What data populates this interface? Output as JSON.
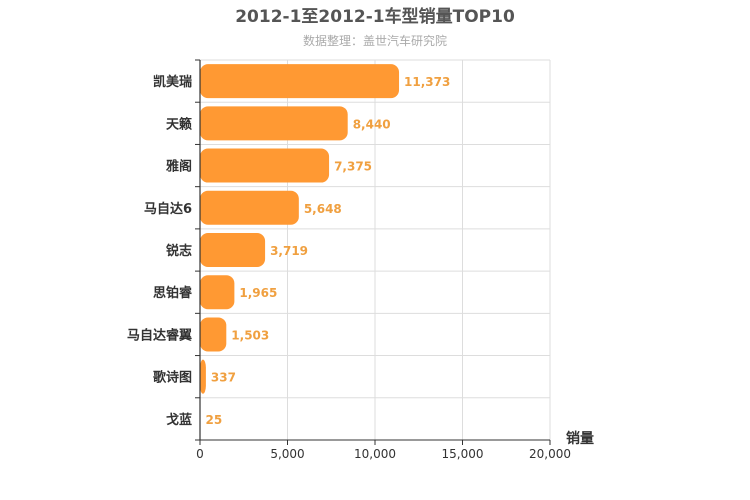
{
  "chart_data": {
    "type": "bar",
    "orientation": "horizontal",
    "title": "2012-1至2012-1车型销量TOP10",
    "subtitle": "数据整理：盖世汽车研究院",
    "xlabel": "销量",
    "categories": [
      "凯美瑞",
      "天籁",
      "雅阁",
      "马自达6",
      "锐志",
      "思铂睿",
      "马自达睿翼",
      "歌诗图",
      "戈蓝"
    ],
    "values": [
      11373,
      8440,
      7375,
      5648,
      3719,
      1965,
      1503,
      337,
      25
    ],
    "value_labels": [
      "11,373",
      "8,440",
      "7,375",
      "5,648",
      "3,719",
      "1,965",
      "1,503",
      "337",
      "25"
    ],
    "xlim": [
      0,
      20000
    ],
    "ticks": [
      0,
      5000,
      10000,
      15000,
      20000
    ],
    "tick_labels": [
      "0",
      "5,000",
      "10,000",
      "15,000",
      "20,000"
    ],
    "grid": true,
    "colors": {
      "bar": "#ff9933",
      "value_label": "#f0a040",
      "grid": "#dddddd",
      "axis": "#333333"
    }
  }
}
